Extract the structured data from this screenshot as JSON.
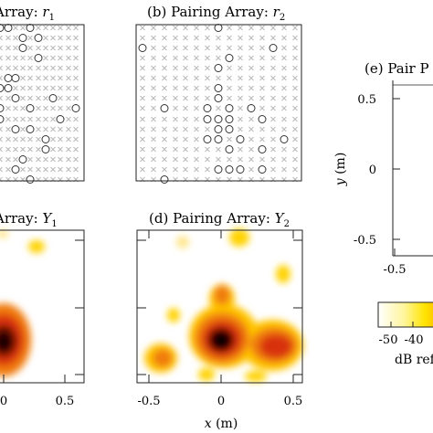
{
  "figure": {
    "panels": {
      "a": {
        "title_prefix": "Array: ",
        "title_sym": "r",
        "title_sub": "1"
      },
      "b": {
        "title_prefix": "(b) Pairing Array: ",
        "title_sym": "r",
        "title_sub": "2"
      },
      "c": {
        "title_prefix": "Array: ",
        "title_sym": "Y",
        "title_sub": "1"
      },
      "d": {
        "title_prefix": "(d) Pairing Array: ",
        "title_sym": "Y",
        "title_sub": "2"
      },
      "e": {
        "title_prefix": "(e) Pair P"
      }
    },
    "ticks": {
      "c_x": [
        "0",
        "0.5"
      ],
      "d_x": [
        "-0.5",
        "0",
        "0.5"
      ],
      "e_y": [
        "0.5",
        "0",
        "-0.5"
      ],
      "e_x": [
        "-0.5"
      ]
    },
    "axis_labels": {
      "d_x_var": "x",
      "d_x_unit": " (m)",
      "e_y_var": "y",
      "e_y_unit": " (m)"
    },
    "colorbar": {
      "ticks": [
        "-50",
        "-40"
      ],
      "label": "dB ref",
      "colors": [
        "#ffffff",
        "#fff59a",
        "#ffe400",
        "#ffc000"
      ]
    },
    "heatmap_colors": [
      "#000000",
      "#3a0000",
      "#9e1a0c",
      "#d83010",
      "#f07c10",
      "#ffc400",
      "#fff59a"
    ],
    "element_colors": {
      "marker": "#333333",
      "cross": "#b8b8b8"
    }
  }
}
